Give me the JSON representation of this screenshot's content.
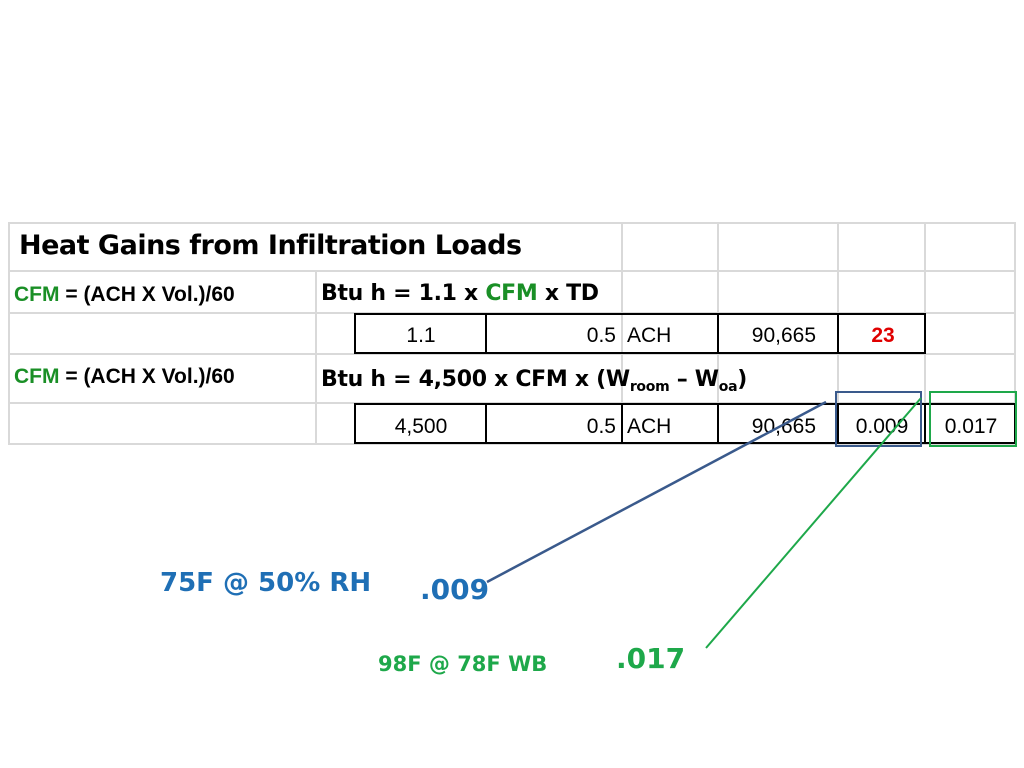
{
  "sheet": {
    "title": "Heat Gains from Infiltration Loads",
    "row1": {
      "cfm_label": "CFM",
      "cfm_eq": "=  (ACH X Vol.)/60",
      "btu_prefix": "Btu h = 1.1 x ",
      "btu_cfm": "CFM",
      "btu_suffix": " x TD"
    },
    "row2": {
      "factor": "1.1",
      "ach_value": "0.5",
      "ach_label": "ACH",
      "volume": "90,665",
      "result": "23"
    },
    "row3": {
      "cfm_label": "CFM",
      "cfm_eq": "=  (ACH X Vol.)/60",
      "btu_text": "Btu h = 4,500 x CFM x (W",
      "sub_room": "room",
      "dash": " – W",
      "sub_oa": "oa",
      "close": ")"
    },
    "row4": {
      "factor": "4,500",
      "ach_value": "0.5",
      "ach_label": "ACH",
      "volume": "90,665",
      "w_room": "0.009",
      "w_oa": "0.017"
    }
  },
  "annotations": {
    "indoor_condition": "75F @ 50% RH",
    "indoor_value": ".009",
    "outdoor_condition": "98F @ 78F WB",
    "outdoor_value": ".017"
  },
  "colors": {
    "cfm_green": "#1a8f26",
    "result_red": "#e00000",
    "annotation_blue": "#1f6fb5",
    "annotation_green": "#1ea84a",
    "callout_blue": "#3a5a8c",
    "callout_green": "#1ea84a",
    "gridline": "#d9d9d9"
  }
}
